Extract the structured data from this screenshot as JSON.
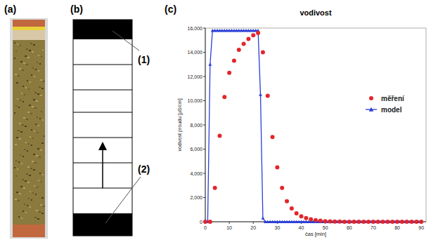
{
  "panels": [
    {
      "letter": "(a)"
    },
    {
      "letter": "(b)",
      "labels": [
        "(1)",
        "(2)"
      ]
    },
    {
      "letter": "(c)"
    }
  ],
  "chart_data": {
    "type": "line",
    "title": "vodivost",
    "x_label": "čas [min]",
    "y_label": "vodivost proudu [µS/cm]",
    "xlim": [
      0,
      92
    ],
    "xticks": [
      0,
      10,
      20,
      30,
      40,
      50,
      60,
      70,
      80,
      90
    ],
    "ylim": [
      0,
      16000
    ],
    "yticks": [
      0,
      {
        "value": 2000,
        "label": "2,000"
      },
      {
        "value": 4000,
        "label": "4,000"
      },
      {
        "value": 6000,
        "label": "6,000"
      },
      {
        "value": 8000,
        "label": "8,000"
      },
      {
        "value": 10000,
        "label": "10,000"
      },
      {
        "value": 12000,
        "label": "12,000"
      },
      {
        "value": 14000,
        "label": "14,000"
      },
      {
        "value": 16000,
        "label": "16,000"
      }
    ],
    "grid": false,
    "legend": "right",
    "series": [
      {
        "name": "měření",
        "type": "scatter",
        "marker": "circle",
        "color": "#e3262b",
        "x": [
          0,
          2,
          4,
          6,
          8,
          10,
          12,
          14,
          16,
          18,
          20,
          22,
          24,
          26,
          28,
          30,
          32,
          34,
          36,
          38,
          40,
          42,
          44,
          46,
          48,
          50,
          52,
          54,
          56,
          58,
          60,
          62,
          64,
          66,
          68,
          70,
          72,
          74,
          76,
          78,
          80,
          82,
          84,
          86,
          88,
          90
        ],
        "values": [
          0,
          0,
          2800,
          7100,
          10300,
          12300,
          13300,
          14200,
          14700,
          15100,
          15400,
          15600,
          14000,
          10400,
          7000,
          4500,
          2800,
          1700,
          1100,
          700,
          450,
          300,
          200,
          130,
          80,
          50,
          30,
          20,
          10,
          0,
          0,
          0,
          0,
          0,
          0,
          0,
          0,
          0,
          0,
          0,
          0,
          0,
          0,
          0,
          0,
          0
        ]
      },
      {
        "name": "model",
        "type": "line",
        "marker": "triangle",
        "color": "#2b3fd8",
        "x": [
          0,
          1,
          2,
          3,
          4,
          5,
          6,
          7,
          8,
          9,
          10,
          11,
          12,
          13,
          14,
          15,
          16,
          17,
          18,
          19,
          20,
          21,
          22,
          23,
          24,
          25,
          26,
          27,
          28,
          29,
          30,
          31,
          32,
          33,
          34,
          35,
          36,
          37,
          38,
          39,
          40,
          41,
          42,
          43,
          44,
          45,
          46,
          47,
          48,
          49,
          50,
          51,
          52,
          53,
          54,
          55,
          56,
          57,
          58,
          59,
          60,
          61,
          62,
          63,
          64,
          65,
          66,
          67,
          68,
          69,
          70,
          71,
          72,
          73,
          74,
          75,
          76,
          77,
          78,
          79,
          80,
          81,
          82,
          83,
          84,
          85,
          86,
          87,
          88,
          89,
          90
        ],
        "values": [
          0,
          0,
          13000,
          15800,
          15800,
          15800,
          15800,
          15800,
          15800,
          15800,
          15800,
          15800,
          15800,
          15800,
          15800,
          15800,
          15800,
          15800,
          15800,
          15800,
          15800,
          15800,
          15800,
          10500,
          300,
          0,
          0,
          0,
          0,
          0,
          0,
          0,
          0,
          0,
          0,
          0,
          0,
          0,
          0,
          0,
          0,
          0,
          0,
          0,
          0,
          0,
          0,
          0,
          0,
          0,
          0,
          0,
          0,
          0,
          0,
          0,
          0,
          0,
          0,
          0,
          0,
          0,
          0,
          0,
          0,
          0,
          0,
          0,
          0,
          0,
          0,
          0,
          0,
          0,
          0,
          0,
          0,
          0,
          0,
          0,
          0,
          0,
          0,
          0,
          0,
          0,
          0,
          0,
          0,
          0,
          0
        ]
      }
    ]
  }
}
